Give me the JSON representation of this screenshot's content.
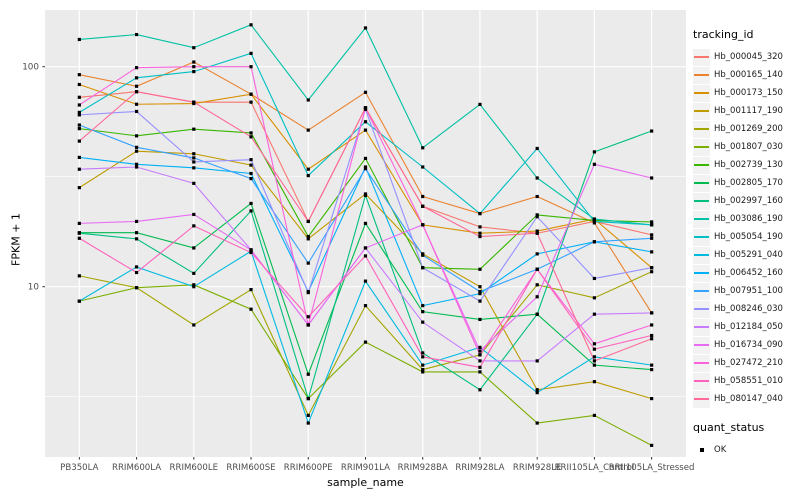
{
  "chart_data": {
    "type": "line",
    "title": "",
    "xlabel": "sample_name",
    "ylabel": "FPKM + 1",
    "y_scale": "log10",
    "y_ticks": [
      100,
      10
    ],
    "y_minor_ticks": [
      31.623,
      3.162
    ],
    "ylim": [
      1.6,
      190
    ],
    "grid": "on",
    "legend_position": "right",
    "legend_title": "tracking_id",
    "x_categories": [
      "PB350LA",
      "RRIM600LA",
      "RRIM600LE",
      "RRIM600SE",
      "RRIM600PE",
      "RRIM901LA",
      "RRIM928BA",
      "RRIM928LA",
      "RRIM928LE",
      "RRII105LA_Control",
      "RRII105LA_Stressed"
    ],
    "quant_status": {
      "title": "quant_status",
      "items": [
        {
          "label": "OK",
          "marker": "black-square"
        }
      ]
    },
    "series": [
      {
        "name": "Hb_000045_320",
        "color": "#F8766D",
        "values": [
          72.6,
          77,
          69,
          69,
          19.8,
          65,
          23.2,
          18.7,
          17.5,
          19.8,
          17.2
        ]
      },
      {
        "name": "Hb_000165_140",
        "color": "#EA8331",
        "values": [
          92,
          81.5,
          105,
          75,
          51.5,
          76.5,
          25.7,
          21.5,
          25.7,
          19.5,
          7.6
        ]
      },
      {
        "name": "Hb_000173_150",
        "color": "#D89000",
        "values": [
          83,
          67.5,
          68,
          75,
          34.2,
          51.5,
          19.1,
          17.5,
          17.9,
          20.3,
          12.2
        ]
      },
      {
        "name": "Hb_001117_190",
        "color": "#C09B00",
        "values": [
          28.2,
          41.3,
          40.2,
          35.7,
          16.5,
          26.4,
          14.1,
          10,
          3.4,
          3.7,
          3.1
        ]
      },
      {
        "name": "Hb_001269_200",
        "color": "#A3A500",
        "values": [
          11.2,
          9.9,
          6.7,
          9.7,
          2.6,
          8.2,
          4.2,
          4.9,
          10.2,
          8.9,
          11.7
        ]
      },
      {
        "name": "Hb_001807_030",
        "color": "#7CAE00",
        "values": [
          8.6,
          9.9,
          10.2,
          7.9,
          3.1,
          5.6,
          4.1,
          4.1,
          2.4,
          2.6,
          1.9
        ]
      },
      {
        "name": "Hb_002739_130",
        "color": "#39B600",
        "values": [
          52.3,
          48.5,
          52,
          50,
          16.9,
          38.3,
          12.2,
          12,
          21.2,
          20,
          19.7
        ]
      },
      {
        "name": "Hb_002805_170",
        "color": "#00BB4E",
        "values": [
          17.6,
          17.6,
          15,
          23.9,
          4,
          19.4,
          7.7,
          7.1,
          7.5,
          4.4,
          4.2
        ]
      },
      {
        "name": "Hb_002997_160",
        "color": "#00BF7D",
        "values": [
          17.5,
          16.5,
          11.5,
          22.1,
          3.1,
          26,
          5,
          3.4,
          7.5,
          41,
          51
        ]
      },
      {
        "name": "Hb_003086_190",
        "color": "#00C1A3",
        "values": [
          133,
          140,
          122,
          155,
          70.6,
          150,
          42.8,
          67.4,
          31.2,
          20.3,
          19.1
        ]
      },
      {
        "name": "Hb_005054_190",
        "color": "#00BFC4",
        "values": [
          62,
          89,
          95,
          115,
          32,
          56.2,
          35,
          21.5,
          42.5,
          19.8,
          19.1
        ]
      },
      {
        "name": "Hb_005291_040",
        "color": "#00BAE0",
        "values": [
          8.6,
          12.3,
          10,
          14.5,
          2.4,
          10.6,
          4.4,
          5.3,
          3.3,
          4.8,
          4.4
        ]
      },
      {
        "name": "Hb_006452_160",
        "color": "#00B0F6",
        "values": [
          38.7,
          36,
          34.7,
          32.7,
          9.5,
          35,
          8.2,
          9.3,
          14.1,
          16,
          14.4
        ]
      },
      {
        "name": "Hb_007951_100",
        "color": "#35A2FF",
        "values": [
          54.3,
          43,
          38.5,
          31,
          12.8,
          34.4,
          13.9,
          9.5,
          12,
          16,
          16.6
        ]
      },
      {
        "name": "Hb_008246_030",
        "color": "#9590FF",
        "values": [
          60.4,
          62.6,
          36.9,
          37.8,
          9.4,
          64,
          12.2,
          8.6,
          20.8,
          10.9,
          12.2
        ]
      },
      {
        "name": "Hb_012184_050",
        "color": "#C77CFF",
        "values": [
          34.2,
          35,
          29.5,
          14.7,
          6.7,
          15,
          6.9,
          4.6,
          4.6,
          7.5,
          7.6
        ]
      },
      {
        "name": "Hb_016734_090",
        "color": "#E76BF3",
        "values": [
          19.4,
          19.8,
          21.3,
          14.7,
          6.7,
          15,
          19.1,
          5.1,
          9,
          36,
          31.2
        ]
      },
      {
        "name": "Hb_027472_210",
        "color": "#FA62DB",
        "values": [
          67,
          99,
          100,
          100,
          6.7,
          65,
          19.1,
          4.9,
          12,
          5.5,
          6.7
        ]
      },
      {
        "name": "Hb_058551_010",
        "color": "#FF62BC",
        "values": [
          16.6,
          11.6,
          18.9,
          14.3,
          7.3,
          13.8,
          4.8,
          4.3,
          12,
          5.2,
          6
        ]
      },
      {
        "name": "Hb_080147_040",
        "color": "#FF6A98",
        "values": [
          45.9,
          77,
          69,
          48,
          19.8,
          65,
          23.2,
          16.9,
          17.5,
          4.6,
          5.8
        ]
      }
    ],
    "style": {
      "panel_bg": "#EBEBEB",
      "grid_color": "#FFFFFF",
      "tick_label_color": "#4D4D4D",
      "marker_color": "#000000"
    }
  }
}
